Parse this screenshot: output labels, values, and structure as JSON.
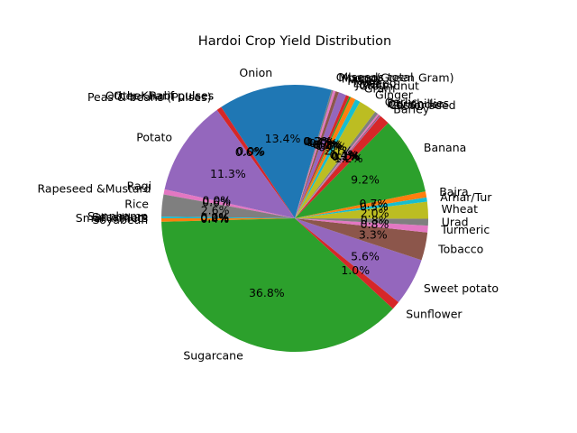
{
  "chart_data": {
    "type": "pie",
    "title": "Hardoi Crop Yield Distribution",
    "start_angle_deg": 180,
    "direction": "counterclockwise",
    "slices": [
      {
        "label": "Soyabean",
        "value": 0.4,
        "color": "#ff7f0e"
      },
      {
        "label": "Sugarcane",
        "value": 36.8,
        "color": "#2ca02c"
      },
      {
        "label": "Sunflower",
        "value": 1.0,
        "color": "#d62728"
      },
      {
        "label": "Sweet potato",
        "value": 5.6,
        "color": "#9467bd"
      },
      {
        "label": "Tobacco",
        "value": 3.3,
        "color": "#8c564b"
      },
      {
        "label": "Turmeric",
        "value": 0.8,
        "color": "#e377c2"
      },
      {
        "label": "Urad",
        "value": 0.8,
        "color": "#7f7f7f"
      },
      {
        "label": "Wheat",
        "value": 2.0,
        "color": "#bcbd22"
      },
      {
        "label": "Arhar/Tur",
        "value": 0.5,
        "color": "#17becf"
      },
      {
        "label": "Bajra",
        "value": 0.7,
        "color": "#ff7f0e"
      },
      {
        "label": "Banana",
        "value": 9.2,
        "color": "#2ca02c"
      },
      {
        "label": "Barley",
        "value": 1.2,
        "color": "#d62728"
      },
      {
        "label": "Castor seed",
        "value": 0.1,
        "color": "#9467bd"
      },
      {
        "label": "Coriander",
        "value": 0.1,
        "color": "#8c564b"
      },
      {
        "label": "Dry chillies",
        "value": 0.2,
        "color": "#e377c2"
      },
      {
        "label": "Garlic",
        "value": 0.4,
        "color": "#7f7f7f"
      },
      {
        "label": "Ginger",
        "value": 2.1,
        "color": "#bcbd22"
      },
      {
        "label": "Gram",
        "value": 0.6,
        "color": "#17becf"
      },
      {
        "label": "Groundnut",
        "value": 0.6,
        "color": "#ff7f0e"
      },
      {
        "label": "Jowar",
        "value": 0.2,
        "color": "#2ca02c"
      },
      {
        "label": "Linseed",
        "value": 0.4,
        "color": "#d62728"
      },
      {
        "label": "Maize",
        "value": 0.9,
        "color": "#9467bd"
      },
      {
        "label": "Masoor",
        "value": 0.4,
        "color": "#8c564b"
      },
      {
        "label": "Moong(Green Gram)",
        "value": 0.3,
        "color": "#e377c2"
      },
      {
        "label": "Oilseeds total",
        "value": 0.2,
        "color": "#7f7f7f"
      },
      {
        "label": "Onion",
        "value": 13.4,
        "color": "#1f77b4"
      },
      {
        "label": "Other Kharif pulses",
        "value": 0.0,
        "color": "#ff7f0e"
      },
      {
        "label": "Other Rabi pulses",
        "value": 0.0,
        "color": "#2ca02c"
      },
      {
        "label": "Peas & beans (Pulses)",
        "value": 0.6,
        "color": "#d62728"
      },
      {
        "label": "Potato",
        "value": 11.3,
        "color": "#9467bd"
      },
      {
        "label": "Ragi",
        "value": 0.0,
        "color": "#8c564b"
      },
      {
        "label": "Rapeseed &Mustard",
        "value": 0.6,
        "color": "#e377c2"
      },
      {
        "label": "Rice",
        "value": 2.6,
        "color": "#7f7f7f"
      },
      {
        "label": "Sannhamp",
        "value": 0.0,
        "color": "#bcbd22"
      },
      {
        "label": "Sesamum",
        "value": 0.2,
        "color": "#17becf"
      },
      {
        "label": "Small millets",
        "value": 0.0,
        "color": "#1f77b4"
      }
    ]
  }
}
